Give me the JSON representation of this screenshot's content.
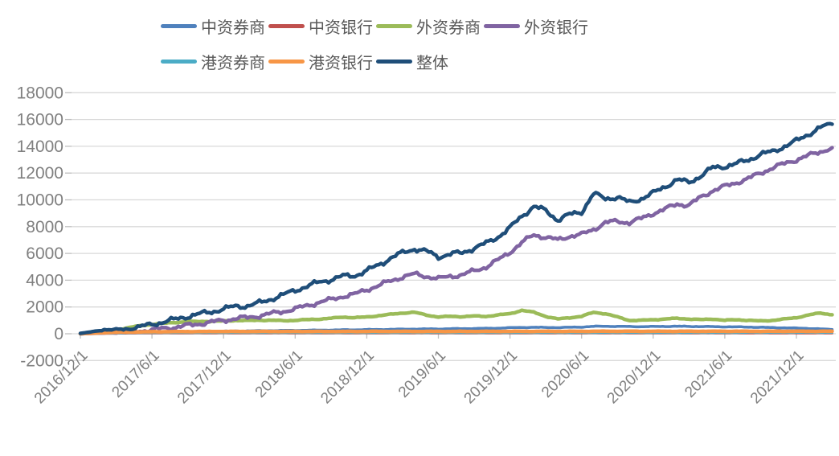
{
  "chart_data": {
    "type": "line",
    "title": "",
    "xlabel": "",
    "ylabel": "",
    "ylim": [
      -2000,
      18000
    ],
    "y_tick_step": 2000,
    "y_tick_labels": [
      "-2000",
      "0",
      "2000",
      "4000",
      "6000",
      "8000",
      "10000",
      "12000",
      "14000",
      "16000",
      "18000"
    ],
    "x_tick_labels": [
      "2016/12/1",
      "2017/6/1",
      "2017/12/1",
      "2018/6/1",
      "2018/12/1",
      "2019/6/1",
      "2019/12/1",
      "2020/6/1",
      "2020/12/1",
      "2021/6/1",
      "2021/12/1"
    ],
    "x_tick_months": [
      0,
      6,
      12,
      18,
      24,
      30,
      36,
      42,
      48,
      54,
      60
    ],
    "months_total": 64,
    "grid": "horizontal",
    "legend_position": "top",
    "legend_row_break": 4,
    "grid_color": "#d9d9d9",
    "axis_color": "#bfbfbf",
    "label_color": "#808080",
    "legend_text_color": "#595959",
    "series": [
      {
        "name": "中资券商",
        "color": "#4F81BD",
        "width": 3.5,
        "values": [
          0,
          20,
          40,
          60,
          80,
          100,
          120,
          140,
          150,
          160,
          170,
          180,
          190,
          200,
          210,
          220,
          230,
          240,
          250,
          260,
          270,
          280,
          290,
          300,
          310,
          320,
          330,
          340,
          350,
          355,
          360,
          370,
          380,
          390,
          400,
          420,
          450,
          470,
          480,
          470,
          460,
          480,
          500,
          550,
          560,
          550,
          540,
          530,
          540,
          550,
          560,
          550,
          540,
          530,
          520,
          510,
          500,
          480,
          460,
          440,
          420,
          400,
          360,
          320
        ]
      },
      {
        "name": "中资银行",
        "color": "#C0504D",
        "width": 3,
        "values": [
          0,
          10,
          20,
          30,
          35,
          40,
          45,
          50,
          50,
          50,
          50,
          50,
          50,
          50,
          50,
          50,
          50,
          50,
          50,
          50,
          50,
          50,
          50,
          50,
          50,
          50,
          50,
          50,
          50,
          50,
          50,
          50,
          50,
          50,
          50,
          50,
          50,
          50,
          50,
          50,
          50,
          50,
          50,
          50,
          50,
          50,
          50,
          50,
          50,
          50,
          50,
          50,
          50,
          50,
          50,
          50,
          50,
          50,
          50,
          50,
          50,
          50,
          50,
          50
        ]
      },
      {
        "name": "外资券商",
        "color": "#9BBB59",
        "width": 4.5,
        "values": [
          0,
          50,
          120,
          250,
          450,
          600,
          700,
          780,
          850,
          900,
          920,
          930,
          950,
          1000,
          980,
          1020,
          1000,
          980,
          1000,
          1050,
          1100,
          1150,
          1250,
          1200,
          1250,
          1350,
          1450,
          1550,
          1600,
          1400,
          1250,
          1300,
          1280,
          1320,
          1300,
          1400,
          1500,
          1750,
          1600,
          1300,
          1100,
          1200,
          1300,
          1600,
          1500,
          1250,
          1000,
          1000,
          1050,
          1100,
          1150,
          1100,
          1050,
          1100,
          1000,
          1050,
          1000,
          950,
          1000,
          1100,
          1200,
          1400,
          1550,
          1420
        ]
      },
      {
        "name": "外资银行",
        "color": "#8064A2",
        "width": 4.5,
        "values": [
          0,
          30,
          60,
          80,
          120,
          200,
          300,
          400,
          500,
          620,
          750,
          870,
          1000,
          1150,
          1200,
          1350,
          1500,
          1680,
          1850,
          2100,
          2350,
          2550,
          2800,
          2950,
          3300,
          3600,
          3950,
          4250,
          4450,
          4300,
          4100,
          4300,
          4400,
          4700,
          5000,
          5500,
          6100,
          6800,
          7400,
          7200,
          7000,
          7300,
          7400,
          7800,
          8300,
          8400,
          8300,
          8600,
          9000,
          9300,
          9700,
          9600,
          10200,
          10700,
          11000,
          11300,
          11600,
          12000,
          12400,
          12700,
          13000,
          13300,
          13600,
          13900
        ]
      },
      {
        "name": "港资券商",
        "color": "#4BACC6",
        "width": 3,
        "values": [
          0,
          15,
          30,
          45,
          60,
          70,
          75,
          80,
          80,
          80,
          80,
          80,
          80,
          80,
          80,
          80,
          80,
          80,
          80,
          80,
          80,
          80,
          80,
          80,
          80,
          80,
          80,
          80,
          80,
          80,
          80,
          80,
          80,
          80,
          80,
          80,
          80,
          80,
          80,
          80,
          80,
          80,
          80,
          80,
          80,
          80,
          80,
          80,
          80,
          80,
          80,
          80,
          80,
          80,
          80,
          80,
          90,
          90,
          90,
          90,
          90,
          90,
          90,
          90
        ]
      },
      {
        "name": "港资银行",
        "color": "#F79646",
        "width": 4.5,
        "values": [
          0,
          40,
          80,
          110,
          130,
          140,
          150,
          155,
          160,
          160,
          165,
          165,
          170,
          170,
          170,
          170,
          170,
          170,
          170,
          170,
          170,
          170,
          170,
          170,
          175,
          175,
          175,
          175,
          175,
          175,
          175,
          175,
          175,
          175,
          175,
          175,
          180,
          180,
          180,
          180,
          180,
          180,
          180,
          185,
          185,
          185,
          185,
          185,
          185,
          185,
          185,
          185,
          185,
          185,
          185,
          185,
          185,
          185,
          185,
          185,
          185,
          185,
          185,
          185
        ]
      },
      {
        "name": "整体",
        "color": "#1F4E79",
        "width": 4.5,
        "values": [
          30,
          150,
          320,
          280,
          380,
          520,
          700,
          900,
          1080,
          1300,
          1480,
          1650,
          1850,
          2050,
          2080,
          2300,
          2600,
          2900,
          3250,
          3550,
          3850,
          4050,
          4300,
          4350,
          4700,
          5150,
          5650,
          6050,
          6350,
          6150,
          5750,
          5950,
          6050,
          6400,
          6750,
          7250,
          7900,
          8800,
          9500,
          9200,
          8500,
          8900,
          9100,
          10450,
          10100,
          10200,
          9800,
          10100,
          10500,
          11000,
          11500,
          11300,
          11800,
          12400,
          12500,
          12700,
          13000,
          13400,
          13600,
          14000,
          14400,
          14900,
          15400,
          15650
        ]
      }
    ]
  }
}
